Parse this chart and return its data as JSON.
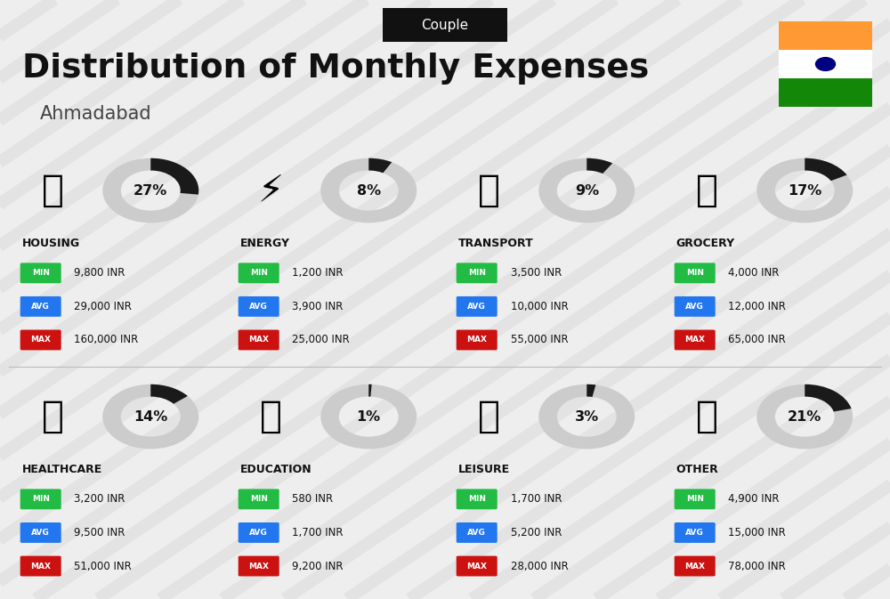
{
  "title": "Distribution of Monthly Expenses",
  "subtitle": "Couple",
  "city": "Ahmadabad",
  "bg_color": "#eeeeee",
  "categories": [
    {
      "name": "HOUSING",
      "pct": 27,
      "min_val": "9,800 INR",
      "avg_val": "29,000 INR",
      "max_val": "160,000 INR",
      "row": 0,
      "col": 0
    },
    {
      "name": "ENERGY",
      "pct": 8,
      "min_val": "1,200 INR",
      "avg_val": "3,900 INR",
      "max_val": "25,000 INR",
      "row": 0,
      "col": 1
    },
    {
      "name": "TRANSPORT",
      "pct": 9,
      "min_val": "3,500 INR",
      "avg_val": "10,000 INR",
      "max_val": "55,000 INR",
      "row": 0,
      "col": 2
    },
    {
      "name": "GROCERY",
      "pct": 17,
      "min_val": "4,000 INR",
      "avg_val": "12,000 INR",
      "max_val": "65,000 INR",
      "row": 0,
      "col": 3
    },
    {
      "name": "HEALTHCARE",
      "pct": 14,
      "min_val": "3,200 INR",
      "avg_val": "9,500 INR",
      "max_val": "51,000 INR",
      "row": 1,
      "col": 0
    },
    {
      "name": "EDUCATION",
      "pct": 1,
      "min_val": "580 INR",
      "avg_val": "1,700 INR",
      "max_val": "9,200 INR",
      "row": 1,
      "col": 1
    },
    {
      "name": "LEISURE",
      "pct": 3,
      "min_val": "1,700 INR",
      "avg_val": "5,200 INR",
      "max_val": "28,000 INR",
      "row": 1,
      "col": 2
    },
    {
      "name": "OTHER",
      "pct": 21,
      "min_val": "4,900 INR",
      "avg_val": "15,000 INR",
      "max_val": "78,000 INR",
      "row": 1,
      "col": 3
    }
  ],
  "min_color": "#22bb44",
  "avg_color": "#2277ee",
  "max_color": "#cc1111",
  "donut_bg": "#cccccc",
  "donut_fg": "#1a1a1a",
  "india_saffron": "#FF9933",
  "india_green": "#138808",
  "india_white": "#FFFFFF",
  "india_navy": "#000080"
}
